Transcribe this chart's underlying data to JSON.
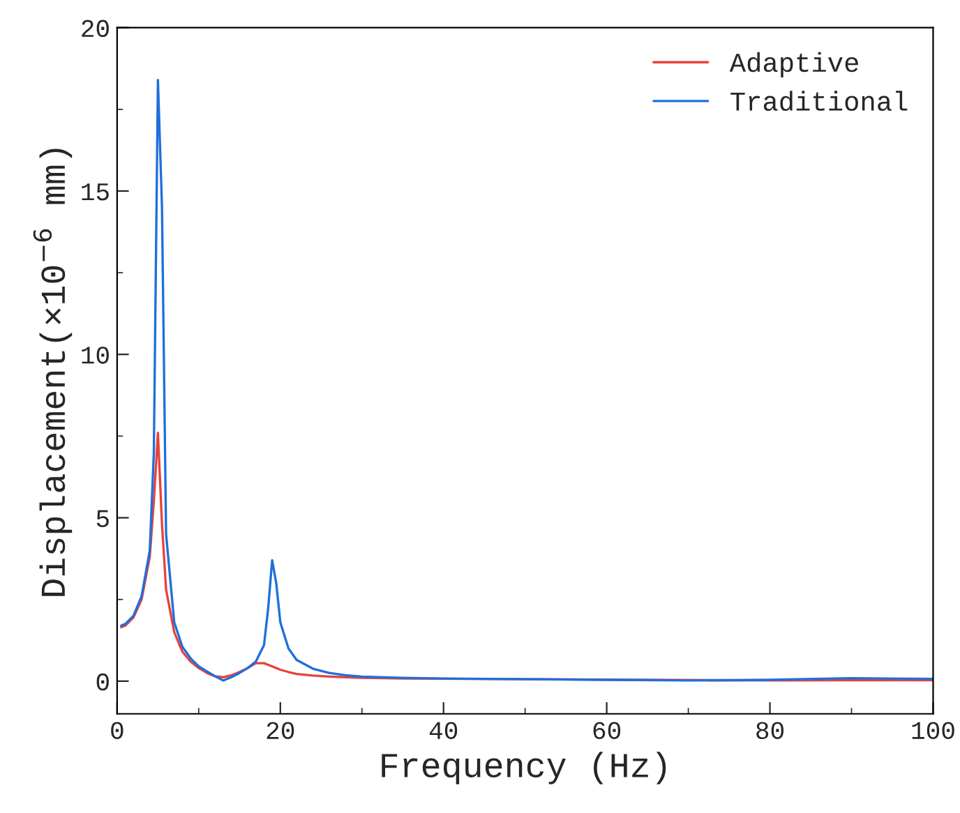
{
  "chart_data": {
    "type": "line",
    "xlabel": "Frequency (Hz)",
    "ylabel": "Displacement(×10$^{−6}$ mm)",
    "xlim": [
      0,
      100
    ],
    "ylim": [
      -1,
      20
    ],
    "xticks": [
      0,
      20,
      40,
      60,
      80,
      100
    ],
    "yticks": [
      0,
      5,
      10,
      15,
      20
    ],
    "grid": false,
    "legend": "top right",
    "marker": "none",
    "line_style": "solid",
    "series": [
      {
        "name": "Adaptive",
        "color": "#e8413c",
        "x": [
          0.5,
          1,
          2,
          3,
          4,
          4.5,
          5,
          5.5,
          6,
          7,
          8,
          9,
          10,
          11,
          12,
          13,
          14,
          15,
          16,
          17,
          18,
          18.5,
          19,
          19.5,
          20,
          21,
          22,
          24,
          26,
          28,
          30,
          35,
          40,
          50,
          60,
          70,
          80,
          90,
          100
        ],
        "values": [
          1.65,
          1.7,
          1.95,
          2.5,
          3.8,
          5.5,
          7.6,
          4.8,
          2.8,
          1.5,
          0.9,
          0.6,
          0.4,
          0.25,
          0.15,
          0.12,
          0.18,
          0.28,
          0.4,
          0.55,
          0.55,
          0.5,
          0.45,
          0.4,
          0.35,
          0.28,
          0.22,
          0.17,
          0.14,
          0.12,
          0.1,
          0.08,
          null,
          null,
          null,
          null,
          0.02,
          0.03,
          0.03
        ]
      },
      {
        "name": "Traditional",
        "color": "#1f6fdc",
        "x": [
          0.5,
          1,
          2,
          3,
          4,
          4.5,
          5,
          5.5,
          6,
          7,
          8,
          9,
          10,
          11,
          12,
          13,
          14,
          15,
          16,
          17,
          18,
          18.5,
          19,
          19.5,
          20,
          21,
          22,
          24,
          26,
          28,
          30,
          35,
          40,
          50,
          60,
          70,
          80,
          90,
          100
        ],
        "values": [
          1.7,
          1.75,
          2.0,
          2.6,
          4.0,
          7.0,
          18.4,
          14.5,
          4.5,
          1.8,
          1.05,
          0.7,
          0.45,
          0.3,
          0.15,
          0.02,
          0.12,
          0.25,
          0.4,
          0.6,
          1.1,
          2.2,
          3.7,
          3.0,
          1.8,
          1.0,
          0.65,
          0.38,
          0.25,
          0.18,
          0.14,
          0.1,
          0.08,
          0.06,
          0.04,
          0.02,
          0.04,
          0.09,
          0.07
        ]
      }
    ]
  }
}
